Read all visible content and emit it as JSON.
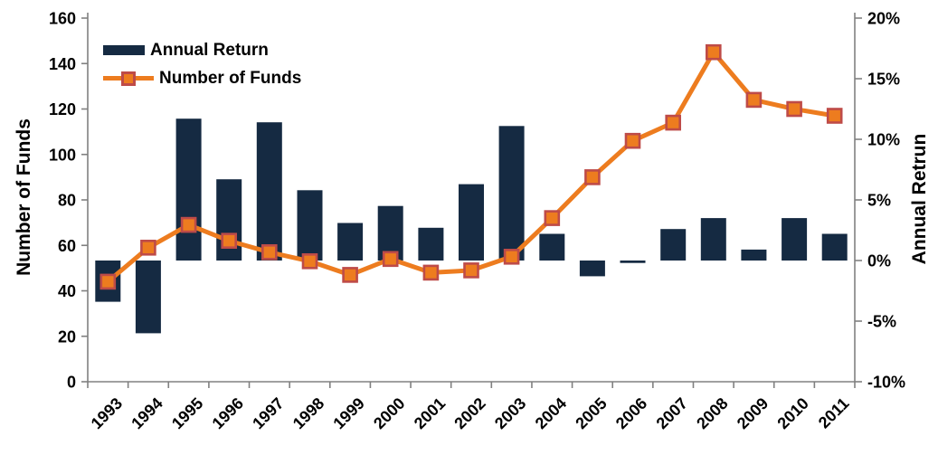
{
  "chart_data": {
    "type": "combo",
    "categories": [
      "1993",
      "1994",
      "1995",
      "1996",
      "1997",
      "1998",
      "1999",
      "2000",
      "2001",
      "2002",
      "2003",
      "2004",
      "2005",
      "2006",
      "2007",
      "2008",
      "2009",
      "2010",
      "2011"
    ],
    "series": [
      {
        "name": "Annual Return",
        "type": "bar",
        "axis": "right",
        "unit": "%",
        "color": "#152A42",
        "values": [
          -3.4,
          -6.0,
          11.7,
          6.7,
          11.4,
          5.8,
          3.1,
          4.5,
          2.7,
          6.3,
          11.1,
          2.2,
          -1.3,
          -0.2,
          2.6,
          3.5,
          0.9,
          3.5,
          2.2
        ]
      },
      {
        "name": "Number of Funds",
        "type": "line",
        "axis": "left",
        "color": "#ED7C1F",
        "marker": "square",
        "marker_border": "#BE4B48",
        "values": [
          44,
          59,
          69,
          62,
          57,
          53,
          47,
          54,
          48,
          49,
          55,
          72,
          90,
          106,
          114,
          145,
          124,
          120,
          117
        ]
      }
    ],
    "left_axis": {
      "title": "Number of Funds",
      "min": 0,
      "max": 160,
      "step": 20,
      "tick_labels": [
        "0",
        "20",
        "40",
        "60",
        "80",
        "100",
        "120",
        "140",
        "160"
      ]
    },
    "right_axis": {
      "title": "Annual Retrun",
      "min": -10,
      "max": 20,
      "step": 5,
      "tick_labels": [
        "-10%",
        "-5%",
        "0%",
        "5%",
        "10%",
        "15%",
        "20%"
      ]
    },
    "x_axis": {
      "label_rotation_deg": -45
    },
    "style": {
      "axis_line_color": "#808080",
      "text_color": "#000000",
      "background": "#ffffff",
      "grid": "off",
      "legend_position": "top-left-inside",
      "bar_baseline_right_axis": 0
    }
  }
}
